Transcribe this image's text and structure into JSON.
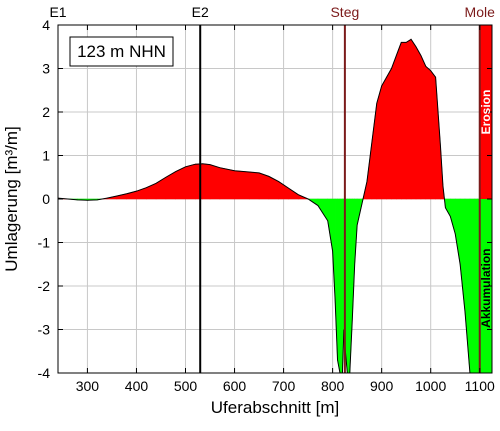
{
  "chart_data": {
    "type": "area",
    "xlabel": "Uferabschnitt [m]",
    "ylabel": "Umlagerung [m³/m]",
    "xlim": [
      240,
      1125
    ],
    "ylim": [
      -4,
      4
    ],
    "x_ticks": [
      300,
      400,
      500,
      600,
      700,
      800,
      900,
      1000,
      1100
    ],
    "y_ticks": [
      4,
      3,
      2,
      1,
      0,
      -1,
      -2,
      -3,
      -4
    ],
    "grid": true,
    "annotation": "123 m NHN",
    "markers": [
      {
        "label": "E1",
        "x": 240,
        "color": "#000000"
      },
      {
        "label": "E2",
        "x": 530,
        "color": "#000000"
      },
      {
        "label": "Steg",
        "x": 825,
        "color": "#7b1a1a"
      },
      {
        "label": "Mole",
        "x": 1100,
        "color": "#7b1a1a"
      }
    ],
    "band_labels": {
      "positive": "Erosion",
      "negative": "Akkumulation"
    },
    "colors": {
      "positive": "#ff0000",
      "negative": "#00ff00",
      "outline": "#000000"
    },
    "series": [
      {
        "x": [
          240,
          260,
          280,
          300,
          320,
          340,
          360,
          380,
          400,
          420,
          440,
          460,
          480,
          500,
          520,
          535,
          550,
          570,
          600,
          630,
          650,
          670,
          690,
          710,
          730,
          750,
          770,
          790,
          800,
          805,
          810,
          815,
          820,
          823,
          826,
          830,
          835,
          840,
          845,
          850,
          860,
          870,
          880,
          890,
          900,
          910,
          920,
          930,
          940,
          950,
          960,
          970,
          980,
          990,
          1000,
          1010,
          1020,
          1025,
          1030,
          1040,
          1050,
          1060,
          1070,
          1080,
          1090,
          1095,
          1100
        ],
        "y": [
          0.02,
          0.0,
          -0.02,
          -0.03,
          -0.02,
          0.02,
          0.07,
          0.12,
          0.18,
          0.26,
          0.36,
          0.5,
          0.63,
          0.74,
          0.8,
          0.81,
          0.79,
          0.72,
          0.65,
          0.62,
          0.6,
          0.52,
          0.4,
          0.25,
          0.1,
          0.0,
          -0.15,
          -0.5,
          -1.2,
          -2.3,
          -3.7,
          -4.0,
          -4.0,
          -3.0,
          -3.5,
          -4.0,
          -4.0,
          -2.8,
          -1.5,
          -0.6,
          -0.1,
          0.4,
          1.3,
          2.2,
          2.6,
          2.8,
          3.0,
          3.3,
          3.6,
          3.6,
          3.67,
          3.5,
          3.3,
          3.05,
          2.95,
          2.8,
          1.2,
          0.3,
          -0.2,
          -0.4,
          -0.8,
          -1.5,
          -2.6,
          -4.0,
          -4.0,
          -4.0,
          -4.0
        ]
      }
    ]
  }
}
